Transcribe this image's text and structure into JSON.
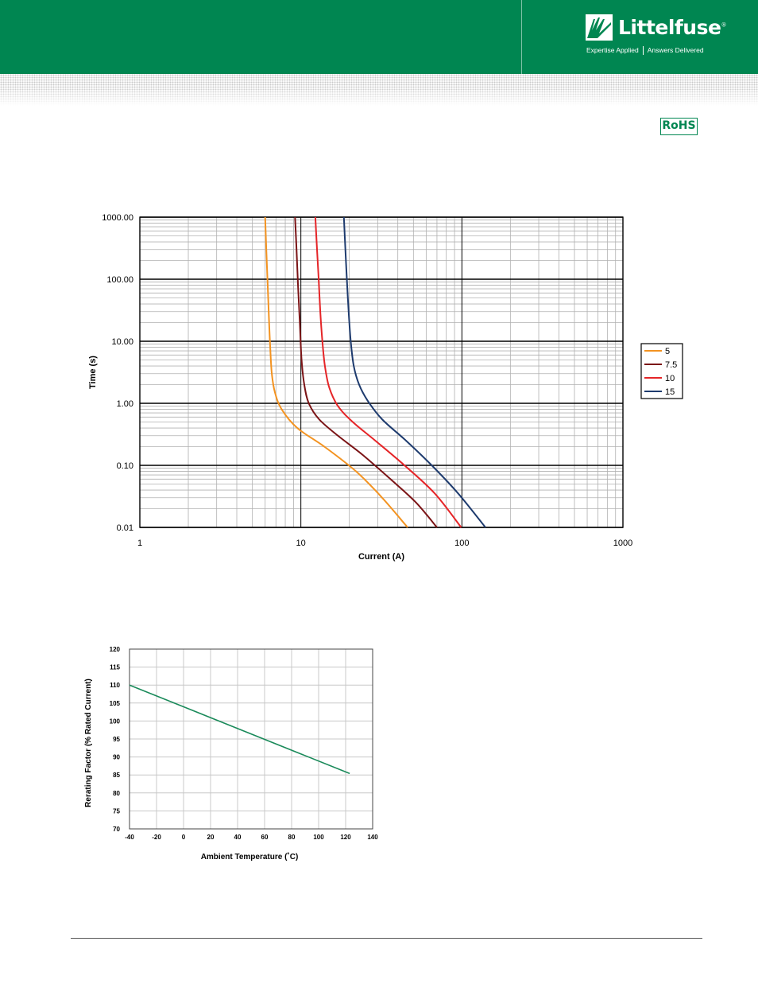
{
  "header": {
    "brand": "Littelfuse",
    "registered_mark": "®",
    "tagline_left": "Expertise Applied",
    "tagline_right": "Answers Delivered",
    "brand_color": "#008651"
  },
  "badge": {
    "label": "RoHS",
    "color": "#008651"
  },
  "chart_data": [
    {
      "type": "line",
      "title": "",
      "xlabel": "Current (A)",
      "ylabel": "Time (s)",
      "x_scale": "log",
      "y_scale": "log",
      "xlim": [
        1,
        1000
      ],
      "ylim": [
        0.01,
        1000
      ],
      "x_ticks": [
        "1",
        "10",
        "100",
        "1000"
      ],
      "y_ticks": [
        "0.01",
        "0.10",
        "1.00",
        "10.00",
        "100.00",
        "1000.00"
      ],
      "grid": true,
      "legend_position": "right",
      "series": [
        {
          "name": "5",
          "color": "#f39321",
          "points": [
            [
              6.0,
              1000
            ],
            [
              6.1,
              300
            ],
            [
              6.25,
              60
            ],
            [
              6.35,
              20
            ],
            [
              6.45,
              8
            ],
            [
              6.6,
              3
            ],
            [
              6.9,
              1.5
            ],
            [
              7.6,
              0.8
            ],
            [
              9.5,
              0.4
            ],
            [
              14,
              0.2
            ],
            [
              22,
              0.08
            ],
            [
              32,
              0.03
            ],
            [
              46,
              0.01
            ]
          ]
        },
        {
          "name": "7.5",
          "color": "#7b1416",
          "points": [
            [
              9.2,
              1000
            ],
            [
              9.4,
              300
            ],
            [
              9.6,
              80
            ],
            [
              9.85,
              20
            ],
            [
              10.1,
              5
            ],
            [
              10.5,
              2
            ],
            [
              11.2,
              1
            ],
            [
              13,
              0.55
            ],
            [
              17,
              0.3
            ],
            [
              24,
              0.15
            ],
            [
              36,
              0.06
            ],
            [
              52,
              0.025
            ],
            [
              70,
              0.01
            ]
          ]
        },
        {
          "name": "10",
          "color": "#e52528",
          "points": [
            [
              12.3,
              1000
            ],
            [
              12.6,
              300
            ],
            [
              12.9,
              100
            ],
            [
              13.2,
              30
            ],
            [
              13.6,
              10
            ],
            [
              14.1,
              4
            ],
            [
              15,
              1.8
            ],
            [
              17,
              0.9
            ],
            [
              21,
              0.5
            ],
            [
              29,
              0.25
            ],
            [
              44,
              0.1
            ],
            [
              68,
              0.035
            ],
            [
              99,
              0.01
            ]
          ]
        },
        {
          "name": "15",
          "color": "#1e3b6e",
          "points": [
            [
              18.5,
              1000
            ],
            [
              18.9,
              300
            ],
            [
              19.3,
              100
            ],
            [
              19.8,
              30
            ],
            [
              20.4,
              10
            ],
            [
              21.3,
              4
            ],
            [
              23,
              2
            ],
            [
              26,
              1.1
            ],
            [
              32,
              0.55
            ],
            [
              45,
              0.25
            ],
            [
              65,
              0.1
            ],
            [
              95,
              0.035
            ],
            [
              140,
              0.01
            ]
          ]
        }
      ]
    },
    {
      "type": "line",
      "title": "",
      "xlabel": "Ambient Temperature (˚C)",
      "ylabel": "Rerating Factor (% Rated Current)",
      "xlim": [
        -40,
        140
      ],
      "ylim": [
        70,
        120
      ],
      "x_ticks": [
        "-40",
        "-20",
        "0",
        "20",
        "40",
        "60",
        "80",
        "100",
        "120",
        "140"
      ],
      "y_ticks": [
        "70",
        "75",
        "80",
        "85",
        "90",
        "95",
        "100",
        "105",
        "110",
        "115",
        "120"
      ],
      "grid": true,
      "series": [
        {
          "color": "#1a8a5a",
          "points": [
            [
              -40,
              110
            ],
            [
              123,
              85.4
            ]
          ]
        }
      ]
    }
  ]
}
